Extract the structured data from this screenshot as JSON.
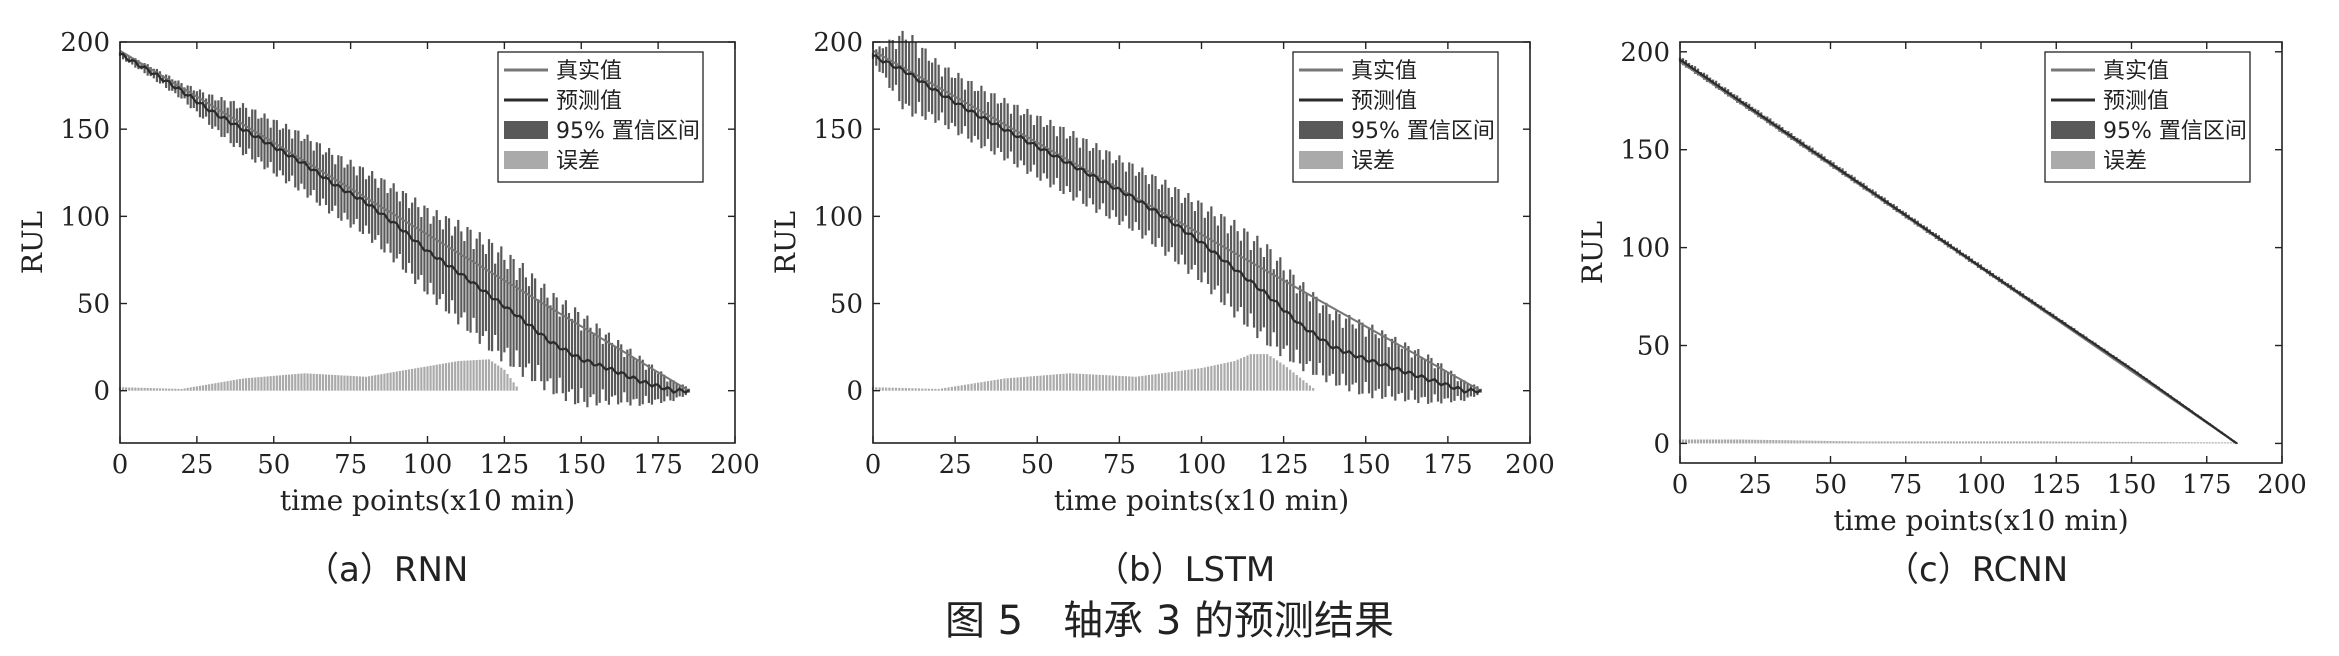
{
  "figure": {
    "caption": "图 5　轴承 3 的预测结果"
  },
  "legend": {
    "true_label": "真实值",
    "pred_label": "预测值",
    "ci_label": "95% 置信区间",
    "err_label": "误差"
  },
  "colors": {
    "true": "#777777",
    "pred": "#2b2b2b",
    "ci": "#595959",
    "err": "#aaaaaa"
  },
  "chart_data": [
    {
      "type": "line",
      "subcaption": "（a）RNN",
      "xlabel": "time points(x10 min)",
      "ylabel": "RUL",
      "xlim": [
        0,
        200
      ],
      "ylim": [
        -30,
        200
      ],
      "xticks": [
        0,
        25,
        50,
        75,
        100,
        125,
        150,
        175,
        200
      ],
      "yticks": [
        0,
        50,
        100,
        150,
        200
      ],
      "n_points": 186,
      "true_rul": {
        "start": 195,
        "end": 0
      },
      "prediction": {
        "x": [
          0,
          10,
          20,
          30,
          40,
          50,
          60,
          70,
          80,
          90,
          100,
          110,
          120,
          130,
          140,
          150,
          160,
          170,
          180,
          185
        ],
        "y": [
          193,
          183,
          172,
          160,
          150,
          140,
          130,
          118,
          108,
          95,
          80,
          68,
          55,
          42,
          28,
          18,
          12,
          5,
          0,
          0
        ]
      },
      "ci_halfwidth": {
        "x": [
          0,
          20,
          40,
          60,
          80,
          100,
          110,
          120,
          130,
          140,
          150,
          160,
          170,
          180,
          185
        ],
        "y": [
          2,
          5,
          15,
          18,
          20,
          26,
          30,
          33,
          33,
          30,
          28,
          20,
          14,
          6,
          2
        ]
      },
      "error": {
        "x": [
          0,
          20,
          30,
          40,
          60,
          80,
          100,
          110,
          120,
          125,
          130,
          140,
          185
        ],
        "y": [
          2,
          1,
          4,
          7,
          10,
          8,
          14,
          17,
          18,
          12,
          0,
          0,
          0
        ]
      },
      "legend_position": "top-right"
    },
    {
      "type": "line",
      "subcaption": "（b）LSTM",
      "xlabel": "time points(x10 min)",
      "ylabel": "RUL",
      "xlim": [
        0,
        200
      ],
      "ylim": [
        -30,
        200
      ],
      "xticks": [
        0,
        25,
        50,
        75,
        100,
        125,
        150,
        175,
        200
      ],
      "yticks": [
        0,
        50,
        100,
        150,
        200
      ],
      "n_points": 186,
      "true_rul": {
        "start": 195,
        "end": 0
      },
      "prediction": {
        "x": [
          0,
          10,
          20,
          30,
          40,
          50,
          60,
          70,
          80,
          90,
          100,
          110,
          120,
          130,
          140,
          150,
          160,
          170,
          180,
          185
        ],
        "y": [
          192,
          183,
          171,
          160,
          150,
          140,
          130,
          120,
          110,
          98,
          85,
          70,
          55,
          38,
          25,
          18,
          12,
          6,
          0,
          0
        ]
      },
      "ci_halfwidth": {
        "x": [
          0,
          10,
          20,
          40,
          60,
          80,
          100,
          110,
          120,
          130,
          140,
          150,
          160,
          170,
          180,
          185
        ],
        "y": [
          3,
          25,
          18,
          18,
          20,
          20,
          24,
          28,
          30,
          26,
          22,
          22,
          18,
          14,
          6,
          2
        ]
      },
      "error": {
        "x": [
          0,
          20,
          30,
          40,
          60,
          80,
          100,
          110,
          115,
          120,
          125,
          135,
          185
        ],
        "y": [
          2,
          1,
          4,
          7,
          10,
          8,
          13,
          17,
          21,
          21,
          15,
          0,
          0
        ]
      },
      "legend_position": "top-right"
    },
    {
      "type": "line",
      "subcaption": "（c）RCNN",
      "xlabel": "time points(x10 min)",
      "ylabel": "RUL",
      "xlim": [
        0,
        200
      ],
      "ylim": [
        -10,
        205
      ],
      "xticks": [
        0,
        25,
        50,
        75,
        100,
        125,
        150,
        175,
        200
      ],
      "yticks": [
        0,
        50,
        100,
        150,
        200
      ],
      "n_points": 186,
      "true_rul": {
        "start": 195,
        "end": 0
      },
      "prediction": {
        "x": [
          0,
          50,
          100,
          150,
          185
        ],
        "y": [
          196,
          143,
          90,
          38,
          0
        ]
      },
      "ci_halfwidth": {
        "x": [
          0,
          100,
          185
        ],
        "y": [
          2,
          1.5,
          0.5
        ]
      },
      "error": {
        "x": [
          0,
          20,
          60,
          120,
          185
        ],
        "y": [
          2,
          2,
          1,
          1,
          0.5
        ]
      },
      "legend_position": "top-right"
    }
  ]
}
